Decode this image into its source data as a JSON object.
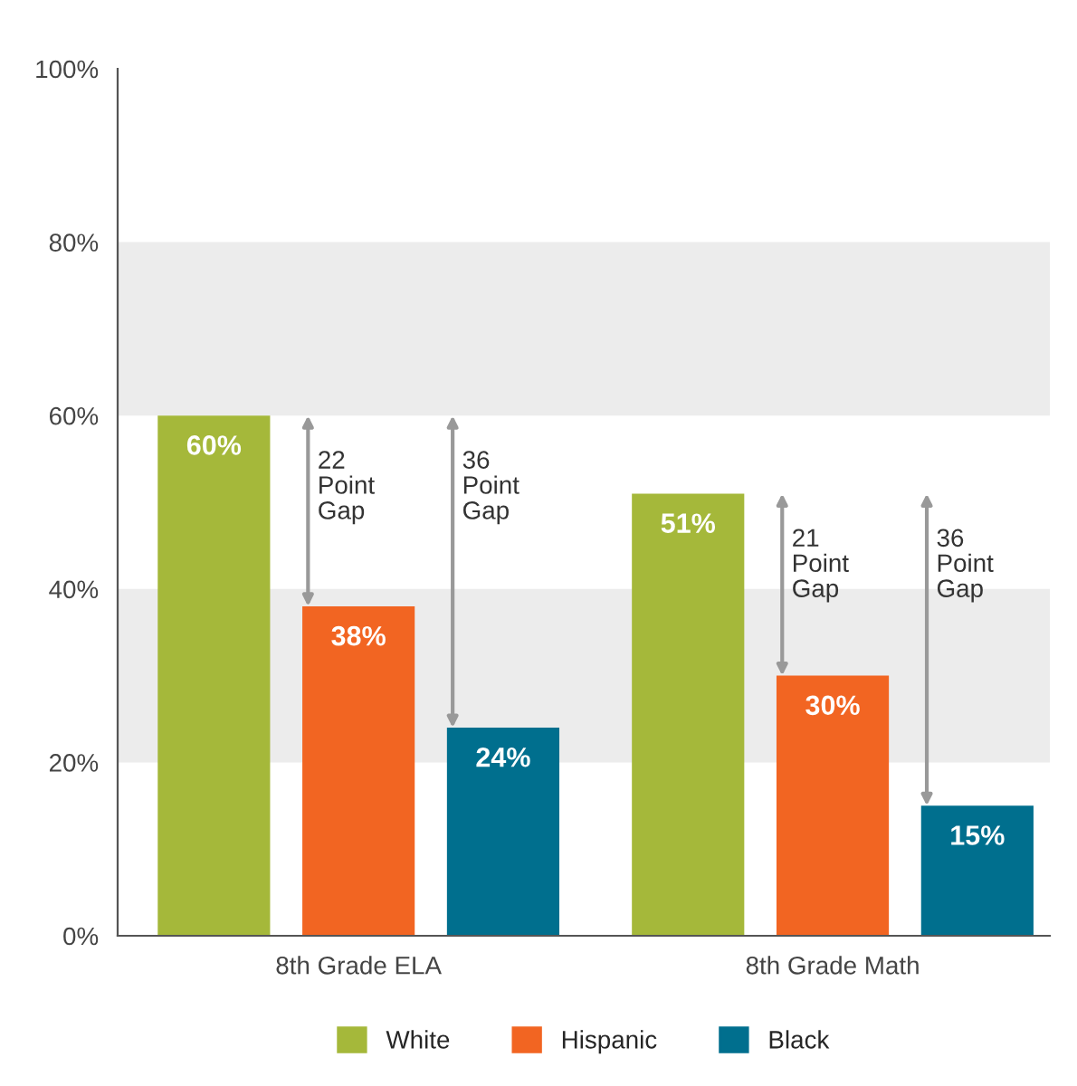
{
  "chart_data": {
    "type": "bar",
    "categories": [
      "8th Grade ELA",
      "8th Grade Math"
    ],
    "series": [
      {
        "name": "White",
        "color": "#a5b83a",
        "values": [
          60,
          51
        ]
      },
      {
        "name": "Hispanic",
        "color": "#f26522",
        "values": [
          38,
          30
        ]
      },
      {
        "name": "Black",
        "color": "#006f8e",
        "values": [
          24,
          15
        ]
      }
    ],
    "value_labels": [
      [
        "60%",
        "51%"
      ],
      [
        "38%",
        "30%"
      ],
      [
        "24%",
        "15%"
      ]
    ],
    "ylim": [
      0,
      100
    ],
    "yticks": [
      {
        "value": 0,
        "label": "0%"
      },
      {
        "value": 20,
        "label": "20%"
      },
      {
        "value": 40,
        "label": "40%"
      },
      {
        "value": 60,
        "label": "60%"
      },
      {
        "value": 80,
        "label": "80%"
      },
      {
        "value": 100,
        "label": "100%"
      }
    ],
    "bands": [
      {
        "axis": "y",
        "from": 20,
        "to": 40,
        "color": "#ececec"
      },
      {
        "axis": "y",
        "from": 60,
        "to": 80,
        "color": "#ececec"
      }
    ],
    "annotations": [
      "22\nPoint\nGap",
      "36\nPoint\nGap",
      "21\nPoint\nGap",
      "36\nPoint\nGap"
    ],
    "grid": false,
    "legend": "bottom"
  }
}
